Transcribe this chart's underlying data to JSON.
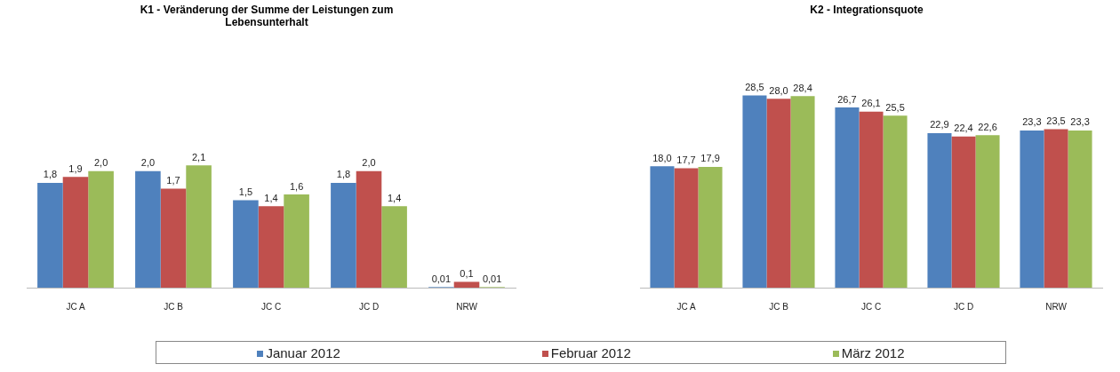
{
  "chart_data": [
    {
      "type": "bar",
      "title": "K1 - Veränderung der Summe der Leistungen zum Lebensunterhalt",
      "categories": [
        "JC A",
        "JC B",
        "JC C",
        "JC D",
        "NRW"
      ],
      "tick_labels": "x",
      "legend": "bottom",
      "series": [
        {
          "name": "Januar 2012",
          "color": "#4f81bd",
          "values": [
            1.8,
            2.0,
            1.5,
            1.8,
            0.01
          ],
          "value_labels": [
            "1,8",
            "2,0",
            "1,5",
            "1,8",
            "0,01"
          ]
        },
        {
          "name": "Februar 2012",
          "color": "#c0504d",
          "values": [
            1.9,
            1.7,
            1.4,
            2.0,
            0.1
          ],
          "value_labels": [
            "1,9",
            "1,7",
            "1,4",
            "2,0",
            "0,1"
          ]
        },
        {
          "name": "März 2012",
          "color": "#9bbb59",
          "values": [
            2.0,
            2.1,
            1.6,
            1.4,
            0.01
          ],
          "value_labels": [
            "2,0",
            "2,1",
            "1,6",
            "1,4",
            "0,01"
          ]
        }
      ]
    },
    {
      "type": "bar",
      "title": "K2 - Integrationsquote",
      "categories": [
        "JC A",
        "JC B",
        "JC C",
        "JC D",
        "NRW"
      ],
      "tick_labels": "x",
      "series": [
        {
          "color": "#4f81bd",
          "values": [
            18.0,
            28.5,
            26.7,
            22.9,
            23.3
          ],
          "value_labels": [
            "18,0",
            "28,5",
            "26,7",
            "22,9",
            "23,3"
          ]
        },
        {
          "color": "#c0504d",
          "values": [
            17.7,
            28.0,
            26.1,
            22.4,
            23.5
          ],
          "value_labels": [
            "17,7",
            "28,0",
            "26,1",
            "22,4",
            "23,5"
          ]
        },
        {
          "color": "#9bbb59",
          "values": [
            17.9,
            28.4,
            25.5,
            22.6,
            23.3
          ],
          "value_labels": [
            "17,9",
            "28,4",
            "25,5",
            "22,6",
            "23,3"
          ]
        }
      ]
    }
  ]
}
